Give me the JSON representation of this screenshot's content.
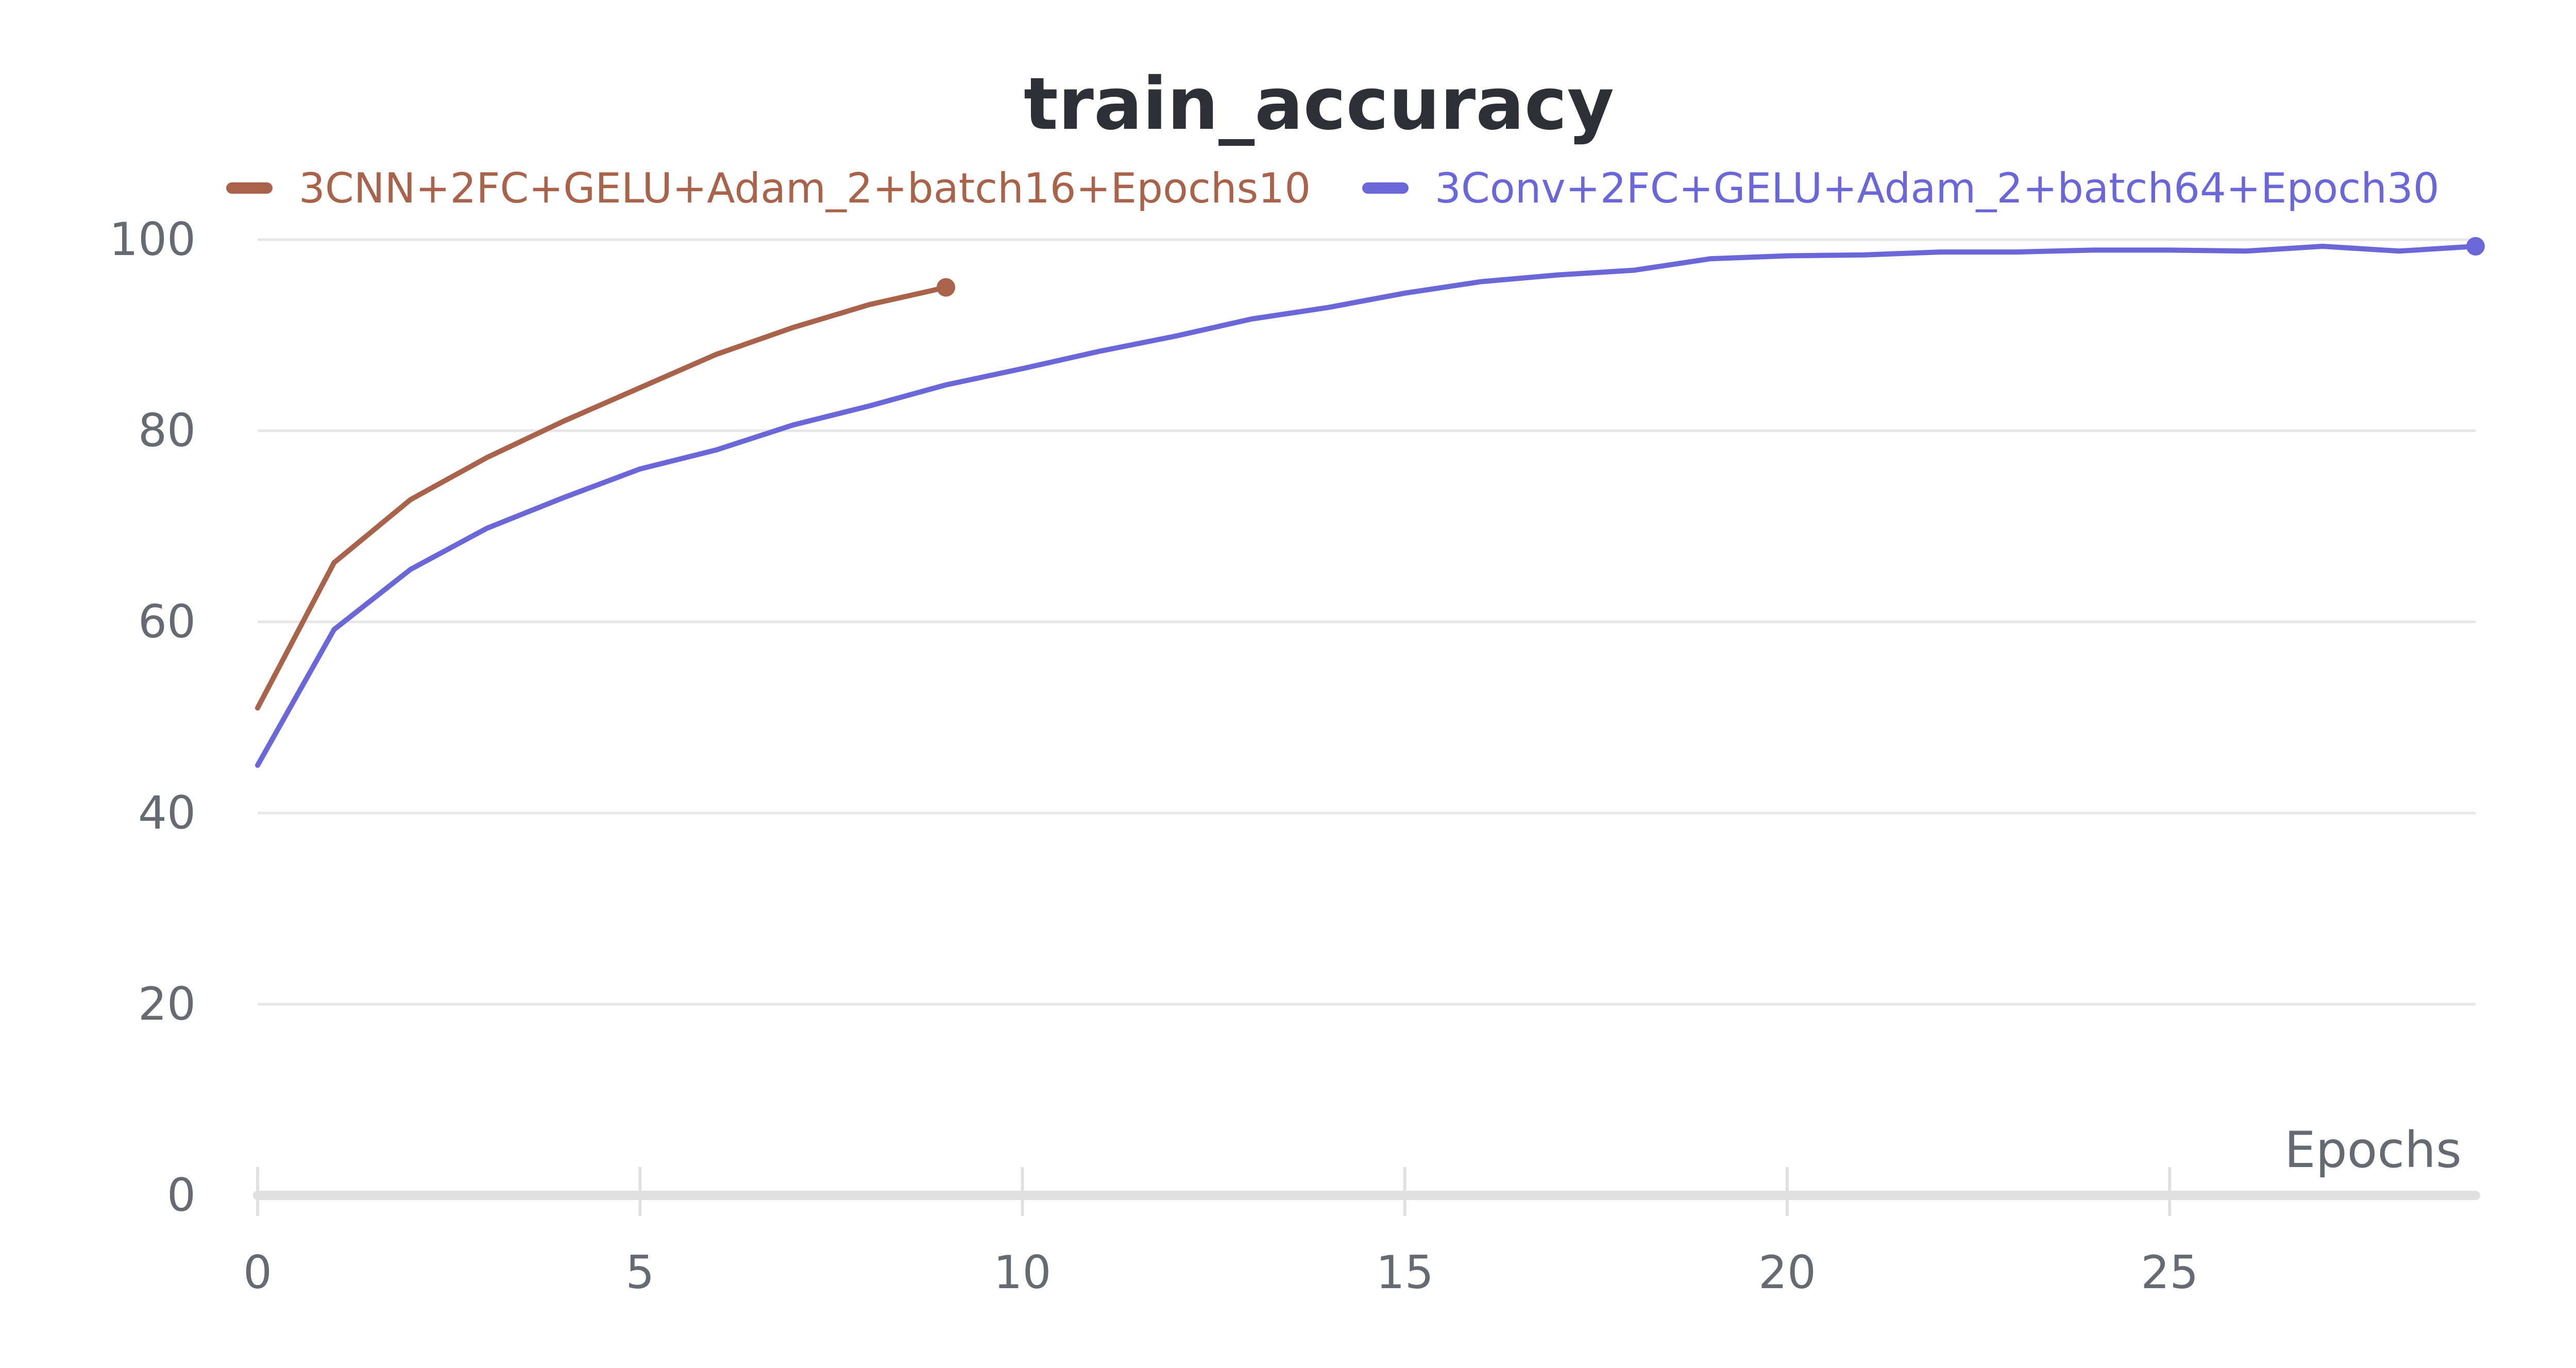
{
  "chart_data": {
    "type": "line",
    "title": "train_accuracy",
    "xlabel": "Epochs",
    "ylabel": "",
    "xlim": [
      0,
      29
    ],
    "ylim": [
      0,
      100
    ],
    "xticks": [
      0,
      5,
      10,
      15,
      20,
      25
    ],
    "yticks": [
      0,
      20,
      40,
      60,
      80,
      100
    ],
    "grid": true,
    "legend_position": "top-left",
    "series": [
      {
        "name": "3CNN+2FC+GELU+Adam_2+batch16+Epochs10",
        "color": "#a9634a",
        "x": [
          0,
          1,
          2,
          3,
          4,
          5,
          6,
          7,
          8,
          9
        ],
        "y": [
          51,
          66.2,
          72.8,
          77.2,
          81,
          84.5,
          88,
          90.8,
          93.2,
          95
        ]
      },
      {
        "name": "3Conv+2FC+GELU+Adam_2+batch64+Epoch30",
        "color": "#6b67d8",
        "x": [
          0,
          1,
          2,
          3,
          4,
          5,
          6,
          7,
          8,
          9,
          10,
          11,
          12,
          13,
          14,
          15,
          16,
          17,
          18,
          19,
          20,
          21,
          22,
          23,
          24,
          25,
          26,
          27,
          28,
          29
        ],
        "y": [
          45,
          59.2,
          65.5,
          69.8,
          73,
          76,
          78,
          80.6,
          82.6,
          84.8,
          86.5,
          88.3,
          89.9,
          91.7,
          92.9,
          94.4,
          95.6,
          96.3,
          96.8,
          98,
          98.3,
          98.4,
          98.7,
          98.7,
          98.9,
          98.9,
          98.8,
          99.3,
          98.8,
          99.3
        ]
      }
    ]
  }
}
